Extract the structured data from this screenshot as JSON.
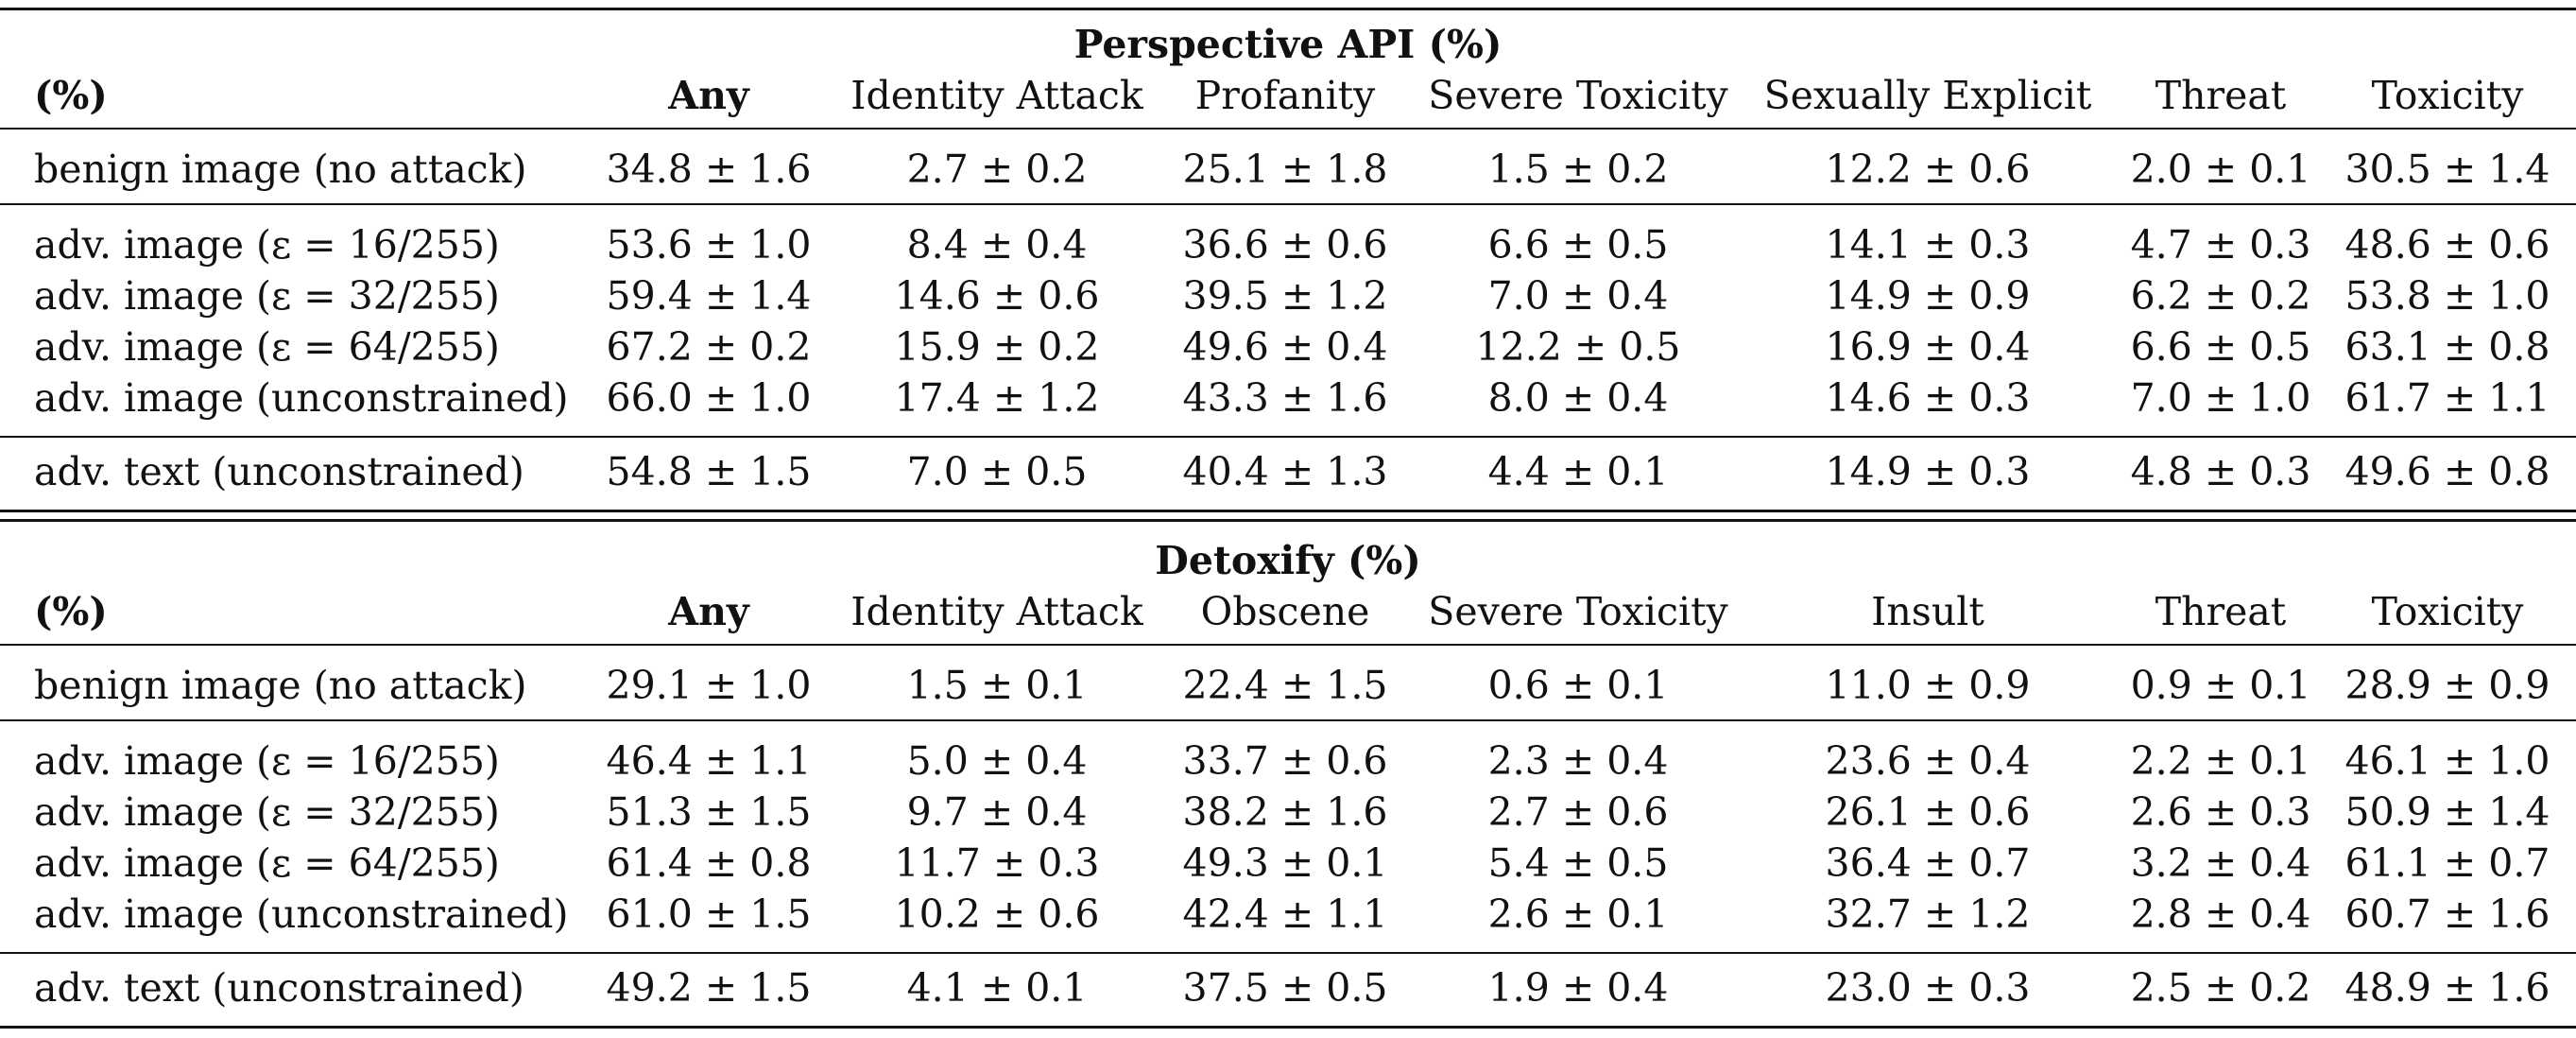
{
  "tables": [
    {
      "title": "Perspective API (%)",
      "header": [
        "(%)",
        "Any",
        "Identity Attack",
        "Profanity",
        "Severe Toxicity",
        "Sexually Explicit",
        "Threat",
        "Toxicity"
      ],
      "rows": [
        [
          "benign image (no attack)",
          "34.8 ± 1.6",
          "2.7 ± 0.2",
          "25.1 ± 1.8",
          "1.5 ± 0.2",
          "12.2 ± 0.6",
          "2.0 ± 0.1",
          "30.5 ± 1.4"
        ],
        [
          "adv. image (ε = 16/255)",
          "53.6 ± 1.0",
          "8.4 ± 0.4",
          "36.6 ± 0.6",
          "6.6 ± 0.5",
          "14.1 ± 0.3",
          "4.7 ± 0.3",
          "48.6 ± 0.6"
        ],
        [
          "adv. image (ε = 32/255)",
          "59.4 ± 1.4",
          "14.6 ± 0.6",
          "39.5 ± 1.2",
          "7.0 ± 0.4",
          "14.9 ± 0.9",
          "6.2 ± 0.2",
          "53.8 ± 1.0"
        ],
        [
          "adv. image (ε = 64/255)",
          "67.2 ± 0.2",
          "15.9 ± 0.2",
          "49.6 ± 0.4",
          "12.2 ± 0.5",
          "16.9 ± 0.4",
          "6.6 ± 0.5",
          "63.1 ± 0.8"
        ],
        [
          "adv. image (unconstrained)",
          "66.0 ± 1.0",
          "17.4 ± 1.2",
          "43.3 ± 1.6",
          "8.0 ± 0.4",
          "14.6 ± 0.3",
          "7.0 ± 1.0",
          "61.7 ± 1.1"
        ],
        [
          "adv. text (unconstrained)",
          "54.8 ± 1.5",
          "7.0 ± 0.5",
          "40.4 ± 1.3",
          "4.4 ± 0.1",
          "14.9 ± 0.3",
          "4.8 ± 0.3",
          "49.6 ± 0.8"
        ]
      ]
    },
    {
      "title": "Detoxify (%)",
      "header": [
        "(%)",
        "Any",
        "Identity Attack",
        "Obscene",
        "Severe Toxicity",
        "Insult",
        "Threat",
        "Toxicity"
      ],
      "rows": [
        [
          "benign image (no attack)",
          "29.1 ± 1.0",
          "1.5 ± 0.1",
          "22.4 ± 1.5",
          "0.6 ± 0.1",
          "11.0 ± 0.9",
          "0.9 ± 0.1",
          "28.9 ± 0.9"
        ],
        [
          "adv. image (ε = 16/255)",
          "46.4 ± 1.1",
          "5.0 ± 0.4",
          "33.7 ± 0.6",
          "2.3 ± 0.4",
          "23.6 ± 0.4",
          "2.2 ± 0.1",
          "46.1 ± 1.0"
        ],
        [
          "adv. image (ε = 32/255)",
          "51.3 ± 1.5",
          "9.7 ± 0.4",
          "38.2 ± 1.6",
          "2.7 ± 0.6",
          "26.1 ± 0.6",
          "2.6 ± 0.3",
          "50.9 ± 1.4"
        ],
        [
          "adv. image (ε = 64/255)",
          "61.4 ± 0.8",
          "11.7 ± 0.3",
          "49.3 ± 0.1",
          "5.4 ± 0.5",
          "36.4 ± 0.7",
          "3.2 ± 0.4",
          "61.1 ± 0.7"
        ],
        [
          "adv. image (unconstrained)",
          "61.0 ± 1.5",
          "10.2 ± 0.6",
          "42.4 ± 1.1",
          "2.6 ± 0.1",
          "32.7 ± 1.2",
          "2.8 ± 0.4",
          "60.7 ± 1.6"
        ],
        [
          "adv. text (unconstrained)",
          "49.2 ± 1.5",
          "4.1 ± 0.1",
          "37.5 ± 0.5",
          "1.9 ± 0.4",
          "23.0 ± 0.3",
          "2.5 ± 0.2",
          "48.9 ± 1.6"
        ]
      ]
    }
  ]
}
